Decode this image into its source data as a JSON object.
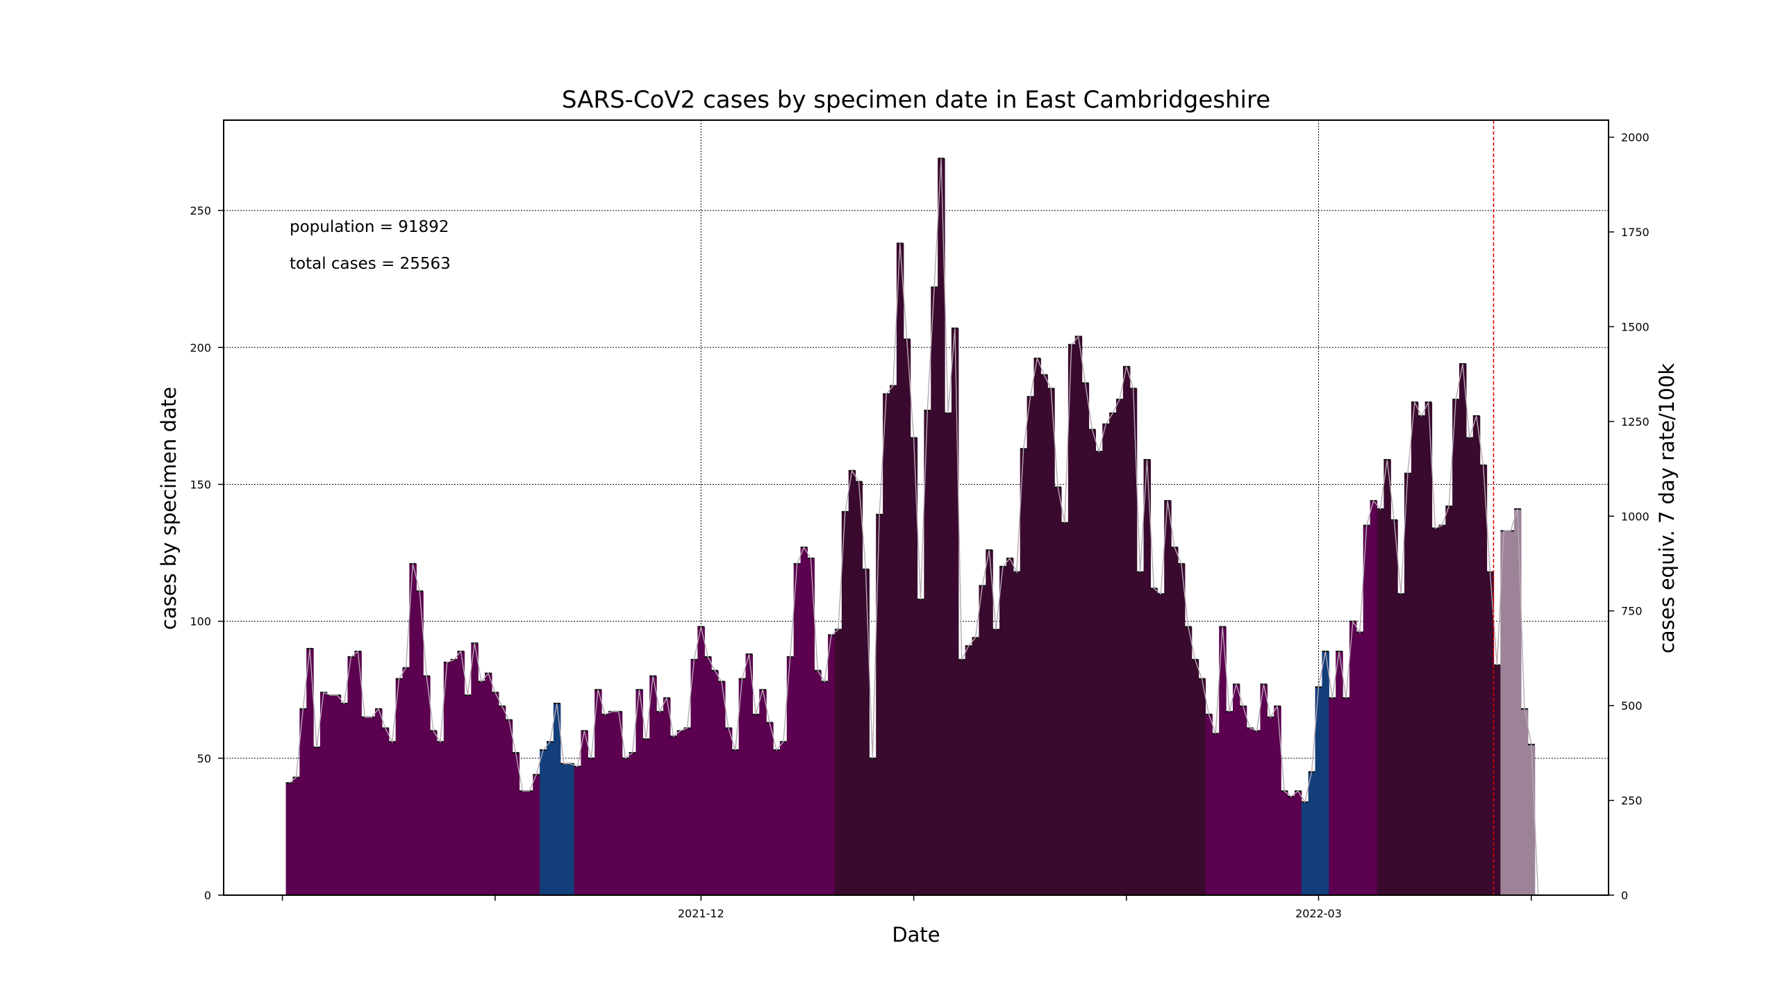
{
  "chart_data": {
    "type": "bar",
    "title": "SARS-CoV2 cases by specimen date in East Cambridgeshire",
    "xlabel": "Date",
    "ylabel": "cases by specimen date",
    "ylabel_right": "cases equiv. 7 day rate/100k",
    "start_date": "2021-10-02",
    "x_tick_labels": [
      {
        "date": "2021-12-01",
        "label": "2021-12"
      },
      {
        "date": "2022-03-01",
        "label": "2022-03"
      }
    ],
    "x_minor_ticks": [
      "2021-10-01",
      "2021-11-01",
      "2021-12-01",
      "2022-01-01",
      "2022-02-01",
      "2022-03-01",
      "2022-04-01"
    ],
    "ylim": [
      0,
      283
    ],
    "y_ticks": [
      0,
      50,
      100,
      150,
      200,
      250
    ],
    "ylim_right": [
      0,
      2045
    ],
    "y_ticks_right": [
      0,
      250,
      500,
      750,
      1000,
      1250,
      1500,
      1750,
      2000
    ],
    "grid": true,
    "annotations": [
      {
        "text": "population = 91892"
      },
      {
        "text": "total cases = 25563"
      }
    ],
    "vline_date": "2022-03-27",
    "band_colors": {
      "purple": "#5c0050",
      "blue": "#123f7a",
      "dark": "#3a0a2e",
      "provisional": "#9c8398"
    },
    "bands": [
      {
        "start": 0,
        "end": 36,
        "color": "purple"
      },
      {
        "start": 37,
        "end": 41,
        "color": "blue"
      },
      {
        "start": 42,
        "end": 79,
        "color": "purple"
      },
      {
        "start": 80,
        "end": 133,
        "color": "dark"
      },
      {
        "start": 134,
        "end": 147,
        "color": "purple"
      },
      {
        "start": 148,
        "end": 151,
        "color": "blue"
      },
      {
        "start": 152,
        "end": 158,
        "color": "purple"
      },
      {
        "start": 159,
        "end": 176,
        "color": "dark"
      },
      {
        "start": 177,
        "end": 181,
        "color": "provisional"
      }
    ],
    "values": [
      41,
      43,
      68,
      90,
      54,
      74,
      73,
      73,
      70,
      87,
      89,
      65,
      65,
      68,
      61,
      56,
      79,
      83,
      121,
      111,
      80,
      60,
      56,
      85,
      86,
      89,
      73,
      92,
      78,
      81,
      74,
      69,
      64,
      52,
      38,
      38,
      44,
      53,
      56,
      70,
      48,
      48,
      47,
      60,
      50,
      75,
      66,
      67,
      67,
      50,
      52,
      75,
      57,
      80,
      67,
      72,
      58,
      60,
      61,
      86,
      98,
      87,
      82,
      78,
      61,
      53,
      79,
      88,
      66,
      75,
      63,
      53,
      56,
      87,
      121,
      127,
      123,
      82,
      78,
      95,
      97,
      140,
      155,
      151,
      119,
      50,
      139,
      183,
      186,
      238,
      203,
      167,
      108,
      177,
      222,
      269,
      176,
      207,
      86,
      91,
      94,
      113,
      126,
      97,
      120,
      123,
      118,
      163,
      182,
      196,
      190,
      185,
      149,
      136,
      201,
      204,
      187,
      170,
      162,
      172,
      176,
      181,
      193,
      185,
      118,
      159,
      112,
      110,
      144,
      127,
      121,
      98,
      86,
      79,
      66,
      59,
      98,
      67,
      77,
      69,
      61,
      60,
      77,
      65,
      69,
      38,
      36,
      38,
      34,
      45,
      76,
      89,
      72,
      89,
      72,
      100,
      96,
      135,
      144,
      141,
      159,
      137,
      110,
      154,
      180,
      175,
      180,
      134,
      135,
      142,
      181,
      194,
      167,
      175,
      157,
      118,
      84,
      133,
      133,
      141,
      68,
      55
    ]
  }
}
